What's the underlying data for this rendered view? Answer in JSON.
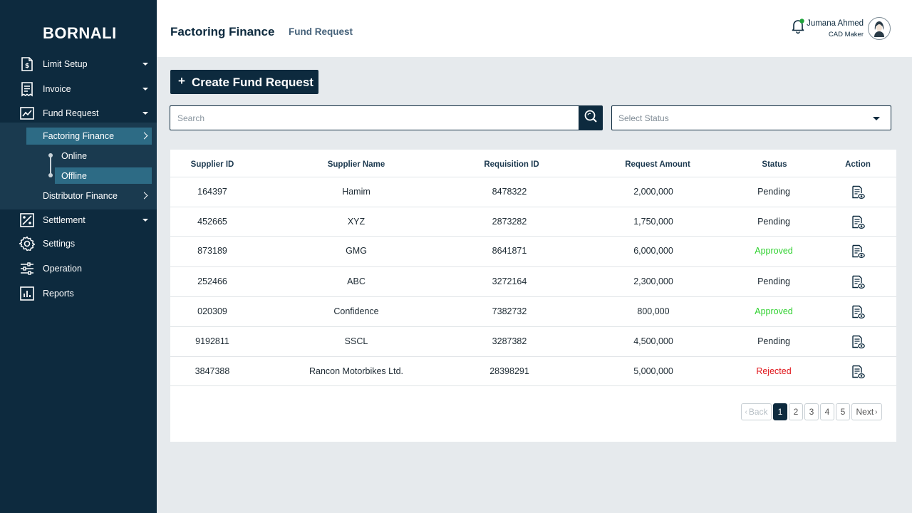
{
  "app": {
    "brand": "BORNALI"
  },
  "sidebar": {
    "items": [
      {
        "label": "Limit Setup",
        "icon": "limit-setup-icon"
      },
      {
        "label": "Invoice",
        "icon": "invoice-icon"
      },
      {
        "label": "Fund Request",
        "icon": "fund-request-icon"
      },
      {
        "label": "Settlement",
        "icon": "settlement-icon"
      },
      {
        "label": "Settings",
        "icon": "settings-icon"
      },
      {
        "label": "Operation",
        "icon": "operation-icon"
      },
      {
        "label": "Reports",
        "icon": "reports-icon"
      }
    ],
    "fund_request_sub": {
      "factoring": "Factoring Finance",
      "online": "Online",
      "offline": "Offline",
      "distributor": "Distributor Finance"
    }
  },
  "header": {
    "title": "Factoring Finance",
    "subtitle": "Fund Request",
    "user_name": "Jumana Ahmed",
    "user_role": "CAD Maker"
  },
  "toolbar": {
    "create_plus": "+",
    "create_label": "Create Fund Request",
    "search_placeholder": "Search",
    "status_placeholder": "Select Status"
  },
  "table": {
    "headers": [
      "Supplier ID",
      "Supplier Name",
      "Requisition ID",
      "Request Amount",
      "Status",
      "Action"
    ],
    "rows": [
      {
        "supplier_id": "164397",
        "supplier_name": "Hamim",
        "requisition_id": "8478322",
        "amount": "2,000,000",
        "status": "Pending"
      },
      {
        "supplier_id": "452665",
        "supplier_name": "XYZ",
        "requisition_id": "2873282",
        "amount": "1,750,000",
        "status": "Pending"
      },
      {
        "supplier_id": "873189",
        "supplier_name": "GMG",
        "requisition_id": "8641871",
        "amount": "6,000,000",
        "status": "Approved"
      },
      {
        "supplier_id": "252466",
        "supplier_name": "ABC",
        "requisition_id": "3272164",
        "amount": "2,300,000",
        "status": "Pending"
      },
      {
        "supplier_id": "020309",
        "supplier_name": "Confidence",
        "requisition_id": "7382732",
        "amount": "800,000",
        "status": "Approved"
      },
      {
        "supplier_id": "9192811",
        "supplier_name": "SSCL",
        "requisition_id": "3287382",
        "amount": "4,500,000",
        "status": "Pending"
      },
      {
        "supplier_id": "3847388",
        "supplier_name": "Rancon Motorbikes Ltd.",
        "requisition_id": "28398291",
        "amount": "5,000,000",
        "status": "Rejected"
      }
    ]
  },
  "pagination": {
    "back": "Back",
    "pages": [
      "1",
      "2",
      "3",
      "4",
      "5"
    ],
    "current": "1",
    "next": "Next"
  },
  "colors": {
    "sidebar_bg": "#0d2a3e",
    "active_sub": "#2d6b85",
    "approved": "#2fd12f",
    "rejected": "#e0161b",
    "notification_dot": "#1fa33a"
  }
}
